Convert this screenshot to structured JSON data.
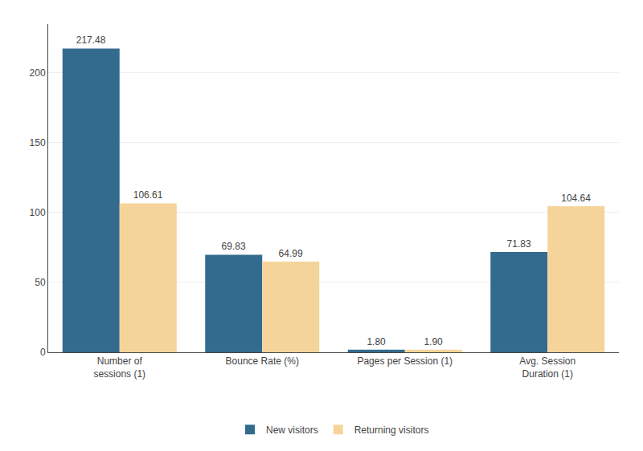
{
  "chart_data": {
    "type": "bar",
    "categories": [
      "Number of\nsessions (1)",
      "Bounce Rate (%)",
      "Pages per Session (1)",
      "Avg. Session\nDuration (1)"
    ],
    "series": [
      {
        "name": "New visitors",
        "color": "#336b8e",
        "values": [
          217.48,
          69.83,
          1.8,
          71.83
        ],
        "value_labels": [
          "217.48",
          "69.83",
          "1.80",
          "71.83"
        ]
      },
      {
        "name": "Returning visitors",
        "color": "#f5d49a",
        "values": [
          106.61,
          64.99,
          1.9,
          104.64
        ],
        "value_labels": [
          "106.61",
          "64.99",
          "1.90",
          "104.64"
        ]
      }
    ],
    "ylim": [
      0,
      235
    ],
    "yticks": [
      0,
      50,
      100,
      150,
      200
    ],
    "grid": true,
    "legend": "bottom",
    "data_labels": true
  }
}
